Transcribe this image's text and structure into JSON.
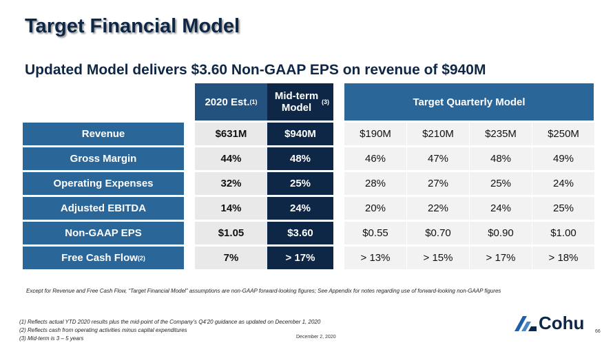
{
  "header": {
    "title": "Target Financial Model",
    "subtitle": "Updated Model delivers $3.60 Non-GAAP EPS on revenue of $940M"
  },
  "table": {
    "columns": [
      {
        "label": "2020 Est.",
        "note": "(1)"
      },
      {
        "label": "Mid-term Model",
        "note": "(3)"
      },
      {
        "label": "Target Quarterly Model"
      }
    ],
    "rows": [
      {
        "label": "Revenue",
        "cells": [
          "$631M",
          "$940M",
          "$190M",
          "$210M",
          "$235M",
          "$250M"
        ]
      },
      {
        "label": "Gross Margin",
        "cells": [
          "44%",
          "48%",
          "46%",
          "47%",
          "48%",
          "49%"
        ]
      },
      {
        "label": "Operating Expenses",
        "cells": [
          "32%",
          "25%",
          "28%",
          "27%",
          "25%",
          "24%"
        ]
      },
      {
        "label": "Adjusted EBITDA",
        "cells": [
          "14%",
          "24%",
          "20%",
          "22%",
          "24%",
          "25%"
        ]
      },
      {
        "label": "Non-GAAP EPS",
        "cells": [
          "$1.05",
          "$3.60",
          "$0.55",
          "$0.70",
          "$0.90",
          "$1.00"
        ]
      },
      {
        "label": "Free Cash Flow",
        "note": "(2)",
        "cells": [
          "7%",
          "> 17%",
          "> 13%",
          "> 15%",
          "> 17%",
          "> 18%"
        ]
      }
    ]
  },
  "disclaimer": "Except for Revenue and Free Cash Flow, “Target Financial Model” assumptions are non-GAAP forward-looking figures; See Appendix for notes regarding use of forward-looking non-GAAP figures",
  "footnotes": [
    "(1)  Reflects actual YTD 2020 results plus the mid-point of the Company’s Q4’20 guidance as updated on December 1, 2020",
    "(2)  Reflects cash from operating activities minus capital expenditures",
    "(3)  Mid-term is 3 – 5 years"
  ],
  "date": "December 2, 2020",
  "page": "66",
  "logo": "Cohu"
}
